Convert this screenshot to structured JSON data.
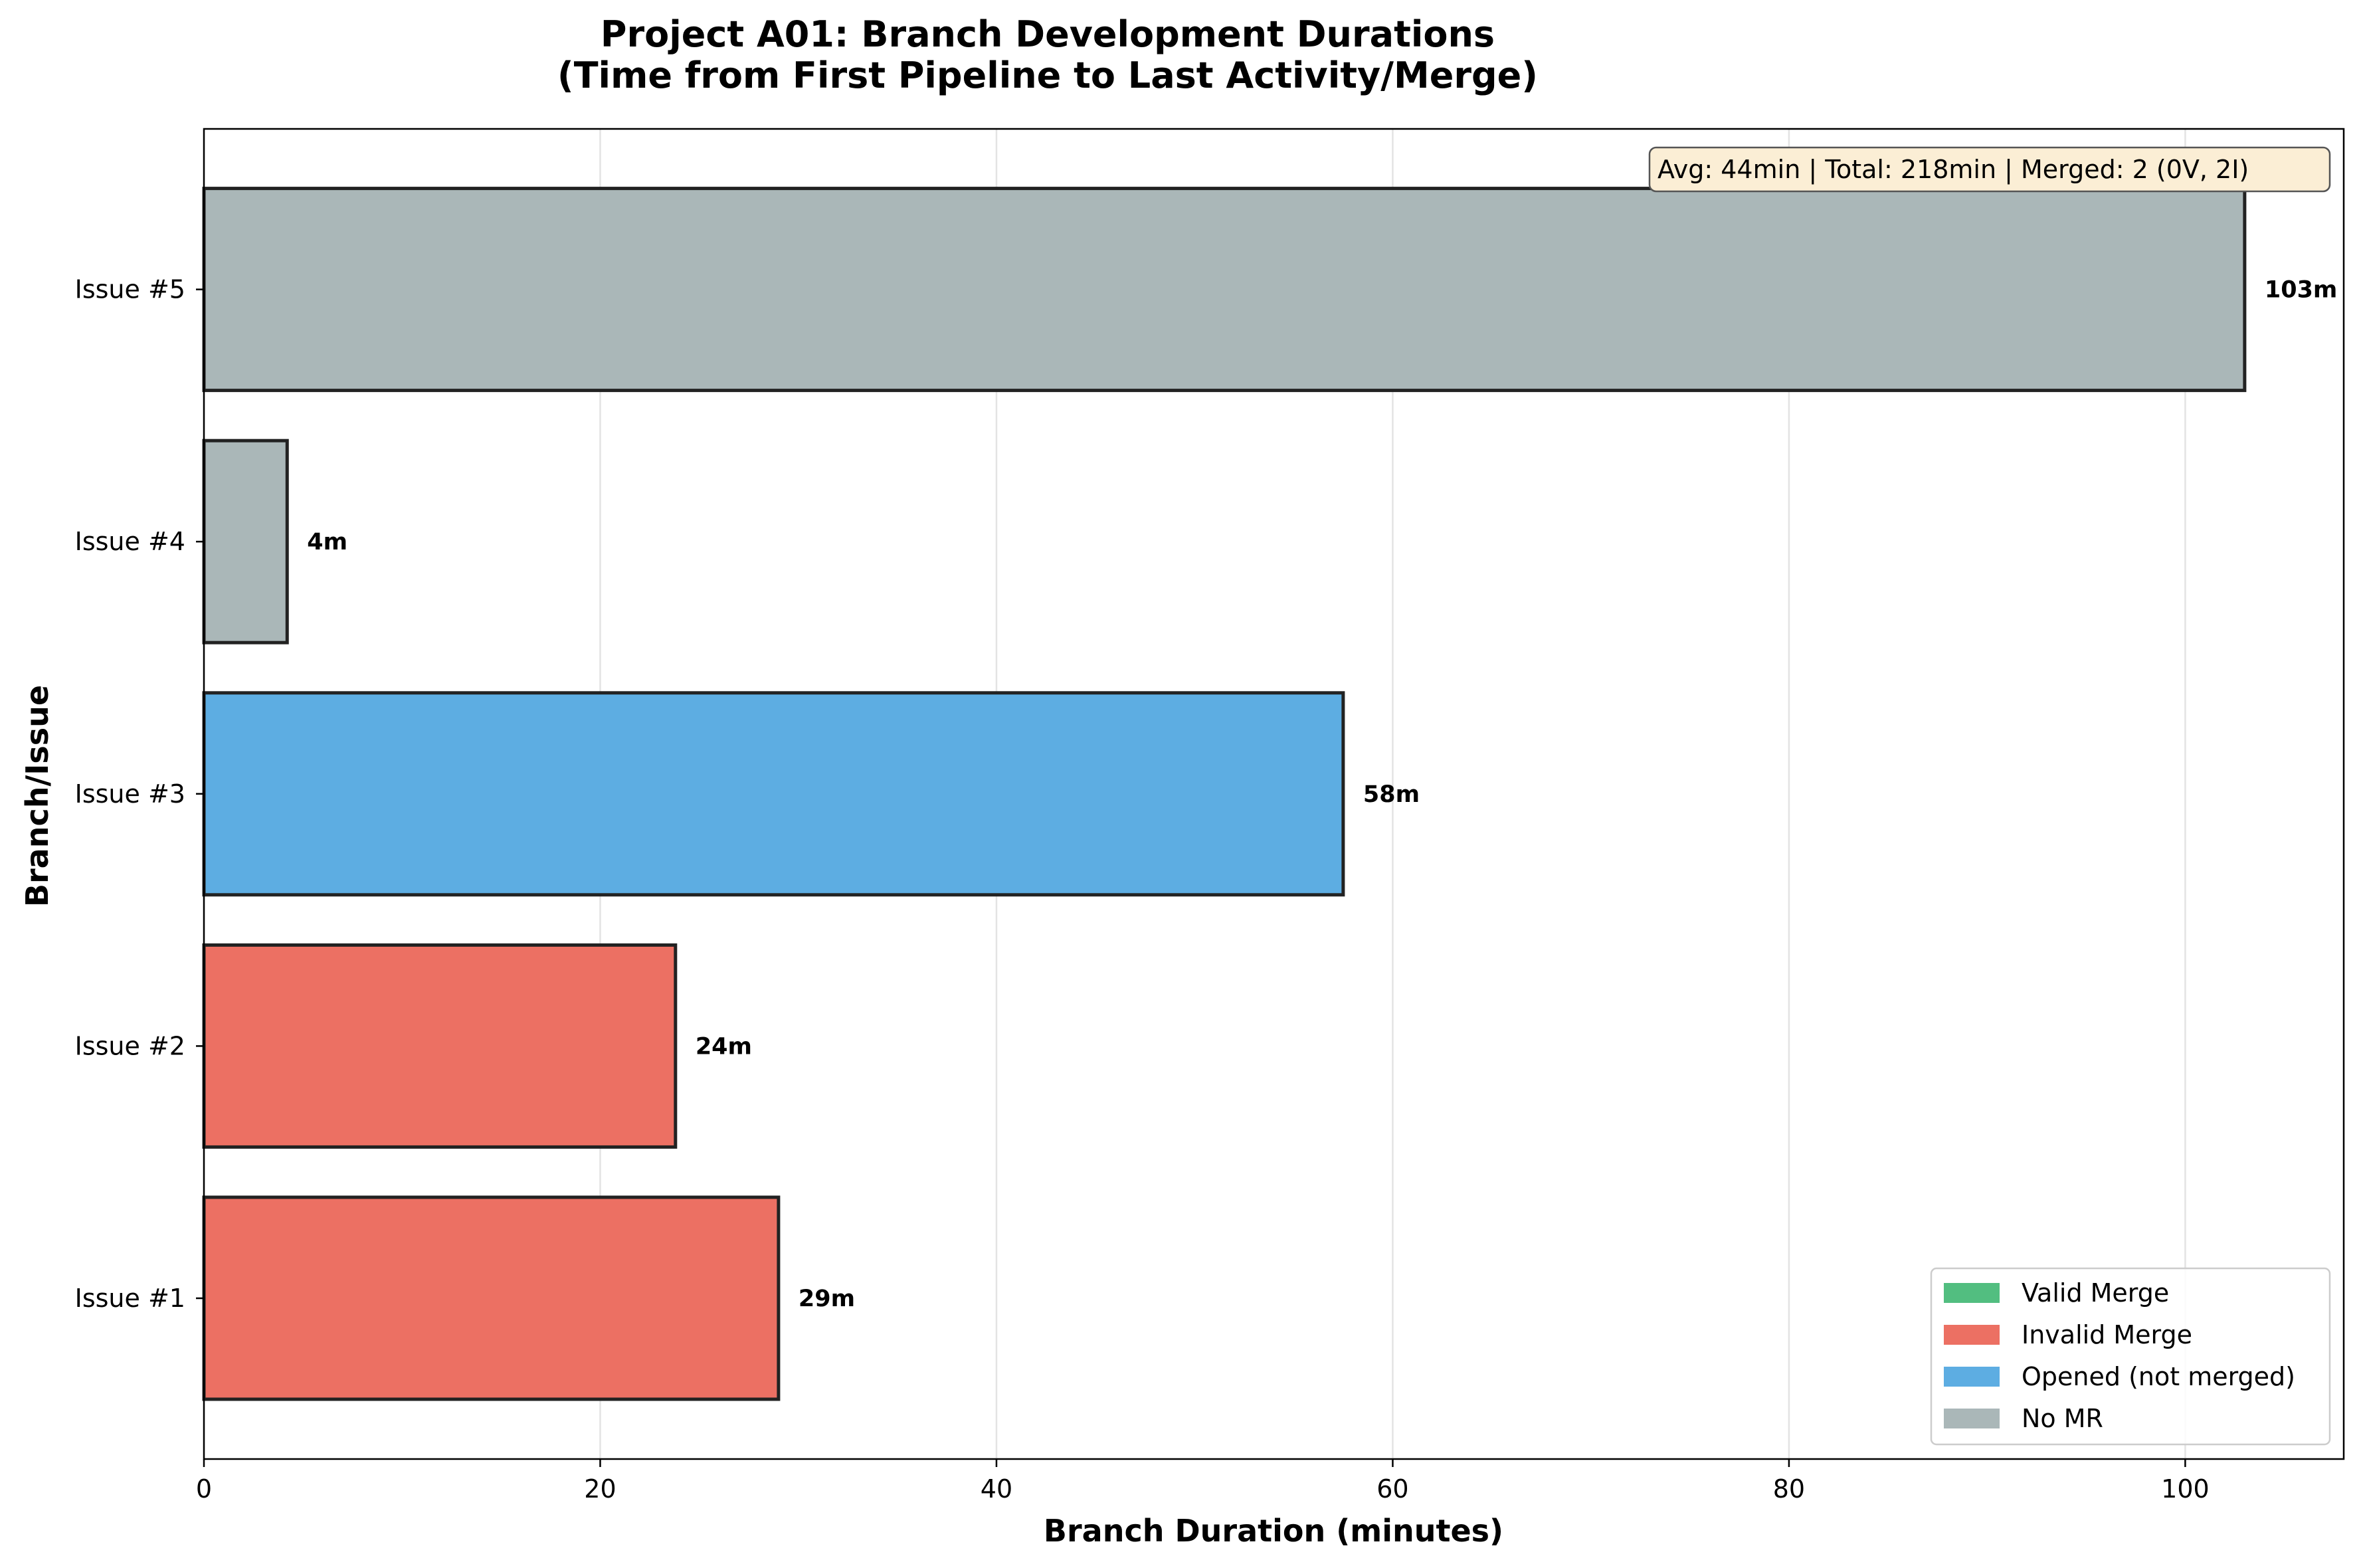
{
  "chart_data": {
    "type": "bar",
    "orientation": "horizontal",
    "title_line1": "Project A01: Branch Development Durations",
    "title_line2": "(Time from First Pipeline to Last Activity/Merge)",
    "xlabel": "Branch Duration (minutes)",
    "ylabel": "Branch/Issue",
    "xlim": [
      0,
      108
    ],
    "xticks": [
      0,
      20,
      40,
      60,
      80,
      100
    ],
    "grid": "x-axis vertical lines",
    "categories": [
      "Issue #1",
      "Issue #2",
      "Issue #3",
      "Issue #4",
      "Issue #5"
    ],
    "values": [
      29,
      23.8,
      57.5,
      4.2,
      103
    ],
    "value_labels": [
      "29m",
      "24m",
      "58m",
      "4m",
      "103m"
    ],
    "bar_status": [
      "Invalid Merge",
      "Invalid Merge",
      "Opened (not merged)",
      "No MR",
      "No MR"
    ],
    "status_colors": {
      "Valid Merge": "#52be80",
      "Invalid Merge": "#ec7063",
      "Opened (not merged)": "#5dade2",
      "No MR": "#aab7b8"
    },
    "legend": {
      "placement": "lower-right",
      "entries": [
        "Valid Merge",
        "Invalid Merge",
        "Opened (not merged)",
        "No MR"
      ]
    },
    "stats_annotation": "Avg: 44min | Total: 218min | Merged: 2 (0V, 2I)",
    "annotation_placement": "top-right",
    "annotation_background": "#fbeed5"
  }
}
